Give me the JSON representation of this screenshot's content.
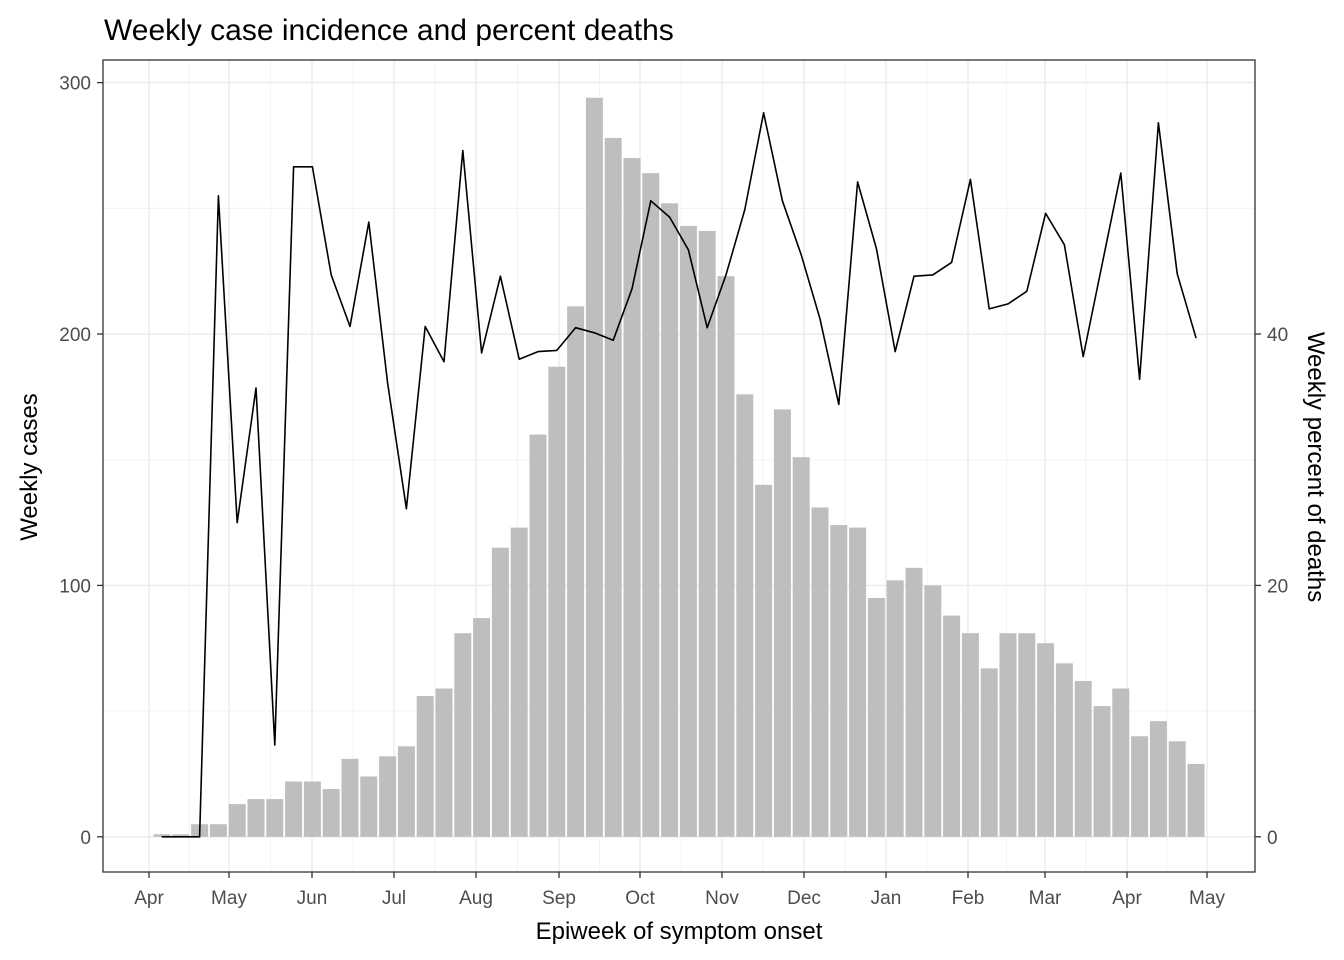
{
  "chart_data": {
    "type": "bar",
    "title": "Weekly case incidence and percent deaths",
    "xlabel": "Epiweek of symptom onset",
    "ylabel": "Weekly cases",
    "y2label": "Weekly percent of deaths",
    "ylim": [
      -14,
      309
    ],
    "y_ticks": [
      0,
      100,
      200,
      300
    ],
    "y2_ticks": [
      0,
      20,
      40
    ],
    "y2_scale": "secondary axis = cases / 5",
    "x_ticks": [
      "Apr",
      "May",
      "Jun",
      "Jul",
      "Aug",
      "Sep",
      "Oct",
      "Nov",
      "Dec",
      "Jan",
      "Feb",
      "Mar",
      "Apr",
      "May"
    ],
    "grid": true,
    "legend": "none",
    "colors": {
      "bars": "#bebebe",
      "line": "#000000",
      "grid": "#ebebeb",
      "axis": "#333333"
    },
    "series": [
      {
        "kind": "bar",
        "axis": "left",
        "values": [
          1,
          1,
          5,
          5,
          13,
          15,
          15,
          22,
          22,
          19,
          31,
          24,
          32,
          36,
          56,
          59,
          81,
          87,
          115,
          123,
          160,
          187,
          211,
          294,
          278,
          270,
          264,
          252,
          243,
          241,
          223,
          176,
          140,
          170,
          151,
          131,
          124,
          123,
          95,
          102,
          107,
          100,
          88,
          81,
          67,
          81,
          81,
          77,
          69,
          62,
          52,
          59,
          40,
          46,
          38,
          29
        ]
      },
      {
        "kind": "line",
        "axis": "right",
        "values": [
          0,
          0,
          0,
          51,
          25,
          35.7,
          7.3,
          53.3,
          53.3,
          44.7,
          40.6,
          48.9,
          36.1,
          26.1,
          40.6,
          37.8,
          54.6,
          38.5,
          44.6,
          38.0,
          38.6,
          38.7,
          40.5,
          40.1,
          39.5,
          43.6,
          50.6,
          49.3,
          46.7,
          40.5,
          44.7,
          49.9,
          57.6,
          50.6,
          46.3,
          41.2,
          34.4,
          52.1,
          46.8,
          38.6,
          44.6,
          44.7,
          45.7,
          52.3,
          42.0,
          42.4,
          43.4,
          49.6,
          47.1,
          38.2,
          45.5,
          52.8,
          36.4,
          56.8,
          44.8,
          39.7
        ]
      }
    ]
  }
}
